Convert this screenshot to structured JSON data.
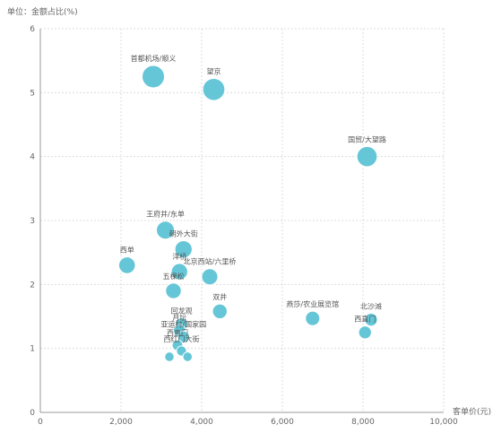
{
  "chart_data": {
    "type": "scatter",
    "title": "",
    "ylabel": "单位：金额占比(%)",
    "xlabel": "客单价(元)",
    "xlim": [
      0,
      10000
    ],
    "ylim": [
      0,
      6
    ],
    "x_ticks": [
      "0",
      "2,000",
      "4,000",
      "6,000",
      "8,000",
      "10,000"
    ],
    "y_ticks": [
      "0",
      "1",
      "2",
      "3",
      "4",
      "5",
      "6"
    ],
    "grid": true,
    "bubble_color": "#5cc4d4",
    "points": [
      {
        "label": "首都机场/顺义",
        "x": 2800,
        "y": 5.25,
        "size": 5.25
      },
      {
        "label": "望京",
        "x": 4300,
        "y": 5.05,
        "size": 5.05
      },
      {
        "label": "国贸/大望路",
        "x": 8100,
        "y": 4.0,
        "size": 4.0
      },
      {
        "label": "王府井/东单",
        "x": 3100,
        "y": 2.85,
        "size": 2.85
      },
      {
        "label": "朝外大街",
        "x": 3550,
        "y": 2.55,
        "size": 2.55
      },
      {
        "label": "西单",
        "x": 2150,
        "y": 2.3,
        "size": 2.3
      },
      {
        "label": "洋桥",
        "x": 3450,
        "y": 2.2,
        "size": 2.2
      },
      {
        "label": "北京西站/六里桥",
        "x": 4200,
        "y": 2.12,
        "size": 2.12
      },
      {
        "label": "五棵松",
        "x": 3300,
        "y": 1.9,
        "size": 1.9
      },
      {
        "label": "双井",
        "x": 4450,
        "y": 1.58,
        "size": 1.58
      },
      {
        "label": "燕莎/农业展览馆",
        "x": 6750,
        "y": 1.47,
        "size": 1.47
      },
      {
        "label": "北沙滩",
        "x": 8200,
        "y": 1.45,
        "size": 1.0
      },
      {
        "label": "西直门",
        "x": 8050,
        "y": 1.25,
        "size": 1.0
      },
      {
        "label": "回龙观",
        "x": 3500,
        "y": 1.38,
        "size": 0.9
      },
      {
        "label": "月坛",
        "x": 3450,
        "y": 1.28,
        "size": 0.8
      },
      {
        "label": "亚运村/国家园",
        "x": 3550,
        "y": 1.18,
        "size": 0.7
      },
      {
        "label": "西直门",
        "x": 3400,
        "y": 1.05,
        "size": 0.5
      },
      {
        "label": "西红门大街",
        "x": 3500,
        "y": 0.96,
        "size": 0.4
      },
      {
        "label": "",
        "x": 3200,
        "y": 0.87,
        "size": 0.3
      },
      {
        "label": "",
        "x": 3650,
        "y": 0.87,
        "size": 0.3
      }
    ]
  }
}
